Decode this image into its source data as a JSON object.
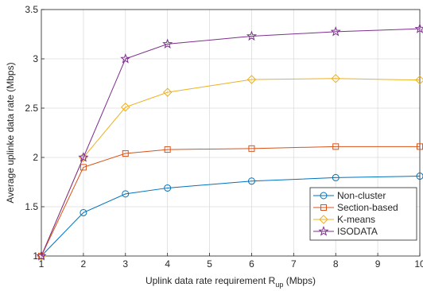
{
  "chart_data": {
    "type": "line",
    "title": "",
    "xlabel": "Uplink data rate requirement R",
    "xlabel_sub": "up",
    "xlabel_unit": " (Mbps)",
    "ylabel": "Average uplinke data rate (Mbps)",
    "x": [
      1,
      2,
      3,
      4,
      6,
      8,
      10
    ],
    "xlim": [
      1,
      10
    ],
    "ylim": [
      1,
      3.5
    ],
    "xticks": [
      1,
      2,
      3,
      4,
      5,
      6,
      7,
      8,
      9,
      10
    ],
    "yticks": [
      1,
      1.5,
      2,
      2.5,
      3,
      3.5
    ],
    "xtick_labels": [
      "1",
      "2",
      "3",
      "4",
      "5",
      "6",
      "7",
      "8",
      "9",
      "10"
    ],
    "ytick_labels": [
      "1",
      "1.5",
      "2",
      "2.5",
      "3",
      "3.5"
    ],
    "grid": true,
    "legend_position": "bottom-right",
    "series": [
      {
        "name": "Non-cluster",
        "color": "#0072BD",
        "marker": "circle",
        "values": [
          1.0,
          1.44,
          1.63,
          1.69,
          1.76,
          1.795,
          1.81
        ]
      },
      {
        "name": "Section-based",
        "color": "#D95319",
        "marker": "square",
        "values": [
          1.0,
          1.9,
          2.04,
          2.08,
          2.09,
          2.11,
          2.11
        ]
      },
      {
        "name": "K-means",
        "color": "#EDB120",
        "marker": "diamond",
        "values": [
          1.0,
          2.0,
          2.51,
          2.66,
          2.79,
          2.8,
          2.785
        ]
      },
      {
        "name": "ISODATA",
        "color": "#7E2F8E",
        "marker": "star",
        "values": [
          1.0,
          2.0,
          3.0,
          3.15,
          3.23,
          3.275,
          3.305
        ]
      }
    ]
  }
}
